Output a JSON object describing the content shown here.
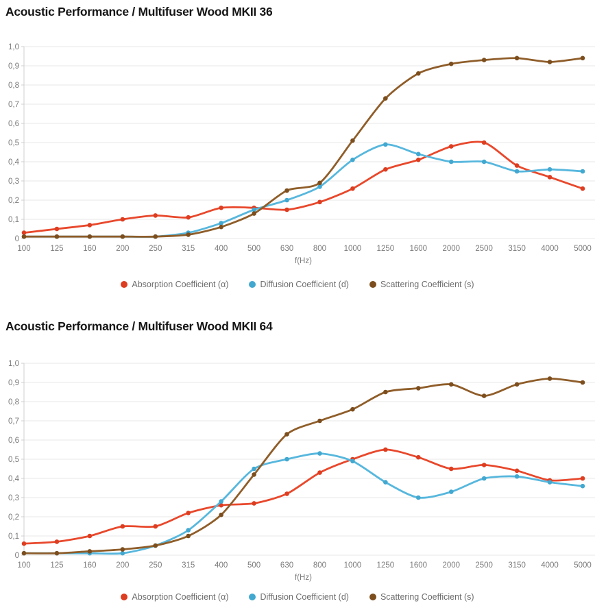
{
  "axis": {
    "x_label": "f(Hz)",
    "x_ticks": [
      "100",
      "125",
      "160",
      "200",
      "250",
      "315",
      "400",
      "500",
      "630",
      "800",
      "1000",
      "1250",
      "1600",
      "2000",
      "2500",
      "3150",
      "4000",
      "5000"
    ],
    "y_ticks": [
      "1,0",
      "0,9",
      "0,8",
      "0,7",
      "0,6",
      "0,5",
      "0,4",
      "0,3",
      "0,2",
      "0,1",
      "0"
    ],
    "grid": true,
    "grid_color": "#e7e7e7",
    "axis_line_color": "#cfcfcf",
    "tick_text_color": "#7b7b7b"
  },
  "chart_data": [
    {
      "type": "line",
      "title": "Acoustic Performance / Multifuser Wood MKII 36",
      "xlabel": "f(Hz)",
      "ylabel": "",
      "ylim": [
        0,
        1.0
      ],
      "legend_position": "bottom",
      "categories": [
        100,
        125,
        160,
        200,
        250,
        315,
        400,
        500,
        630,
        800,
        1000,
        1250,
        1600,
        2000,
        2500,
        3150,
        4000,
        5000
      ],
      "series": [
        {
          "name": "Absorption Coefficient (α)",
          "color": "#e8482c",
          "dot_color": "#dd3d20",
          "values": [
            0.03,
            0.05,
            0.07,
            0.1,
            0.12,
            0.11,
            0.16,
            0.16,
            0.15,
            0.19,
            0.26,
            0.36,
            0.41,
            0.48,
            0.5,
            0.38,
            0.32,
            0.26
          ]
        },
        {
          "name": "Diffusion Coefficient (d)",
          "color": "#57b7dd",
          "dot_color": "#42a8d0",
          "values": [
            0.01,
            0.01,
            0.01,
            0.01,
            0.01,
            0.03,
            0.08,
            0.15,
            0.2,
            0.27,
            0.41,
            0.49,
            0.44,
            0.4,
            0.4,
            0.35,
            0.36,
            0.35
          ]
        },
        {
          "name": "Scattering Coefficient (s)",
          "color": "#8f5d29",
          "dot_color": "#7c4e1e",
          "values": [
            0.01,
            0.01,
            0.01,
            0.01,
            0.01,
            0.02,
            0.06,
            0.13,
            0.25,
            0.29,
            0.51,
            0.73,
            0.86,
            0.91,
            0.93,
            0.94,
            0.92,
            0.94
          ]
        }
      ]
    },
    {
      "type": "line",
      "title": "Acoustic Performance / Multifuser Wood MKII 64",
      "xlabel": "f(Hz)",
      "ylabel": "",
      "ylim": [
        0,
        1.0
      ],
      "legend_position": "bottom",
      "categories": [
        100,
        125,
        160,
        200,
        250,
        315,
        400,
        500,
        630,
        800,
        1000,
        1250,
        1600,
        2000,
        2500,
        3150,
        4000,
        5000
      ],
      "series": [
        {
          "name": "Absorption Coefficient (α)",
          "color": "#e8482c",
          "dot_color": "#dd3d20",
          "values": [
            0.06,
            0.07,
            0.1,
            0.15,
            0.15,
            0.22,
            0.26,
            0.27,
            0.32,
            0.43,
            0.5,
            0.55,
            0.51,
            0.45,
            0.47,
            0.44,
            0.39,
            0.4
          ]
        },
        {
          "name": "Diffusion Coefficient (d)",
          "color": "#57b7dd",
          "dot_color": "#42a8d0",
          "values": [
            0.01,
            0.01,
            0.01,
            0.01,
            0.05,
            0.13,
            0.28,
            0.45,
            0.5,
            0.53,
            0.49,
            0.38,
            0.3,
            0.33,
            0.4,
            0.41,
            0.38,
            0.36
          ]
        },
        {
          "name": "Scattering Coefficient (s)",
          "color": "#8f5d29",
          "dot_color": "#7c4e1e",
          "values": [
            0.01,
            0.01,
            0.02,
            0.03,
            0.05,
            0.1,
            0.21,
            0.42,
            0.63,
            0.7,
            0.76,
            0.85,
            0.87,
            0.89,
            0.83,
            0.89,
            0.92,
            0.9
          ]
        }
      ]
    }
  ]
}
